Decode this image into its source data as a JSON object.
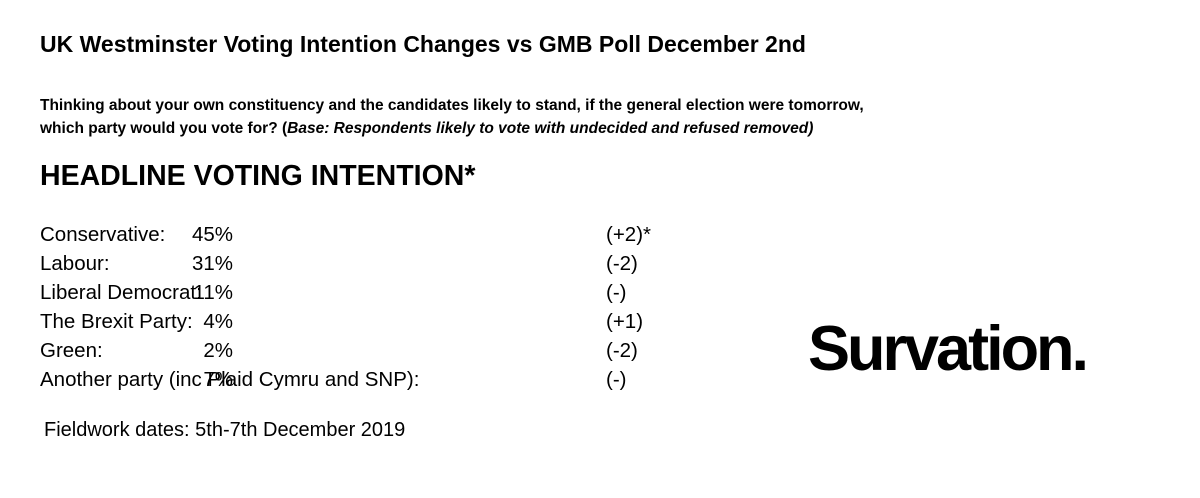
{
  "title": "UK Westminster Voting Intention Changes vs GMB Poll December 2nd",
  "question": {
    "line1": "Thinking about your own constituency and the candidates likely to stand, if the general election were tomorrow,",
    "line2_prefix": "which party would you vote for? (",
    "line2_base": "Base: Respondents likely to vote with undecided and refused removed)"
  },
  "headline": "HEADLINE VOTING INTENTION*",
  "results": [
    {
      "party": "Conservative:",
      "pct": "45%",
      "change": "(+2)*"
    },
    {
      "party": "Labour:",
      "pct": "31%",
      "change": "(-2)"
    },
    {
      "party": "Liberal Democrat:",
      "pct": "11%",
      "change": "(-)"
    },
    {
      "party": "The Brexit Party:",
      "pct": "4%",
      "change": "(+1)"
    },
    {
      "party": "Green:",
      "pct": "2%",
      "change": "(-2)"
    },
    {
      "party": "Another party (inc Plaid Cymru and SNP):",
      "pct": "7%",
      "change": "(-)"
    }
  ],
  "fieldwork": "Fieldwork dates: 5th-7th December 2019",
  "logo": "Survation."
}
